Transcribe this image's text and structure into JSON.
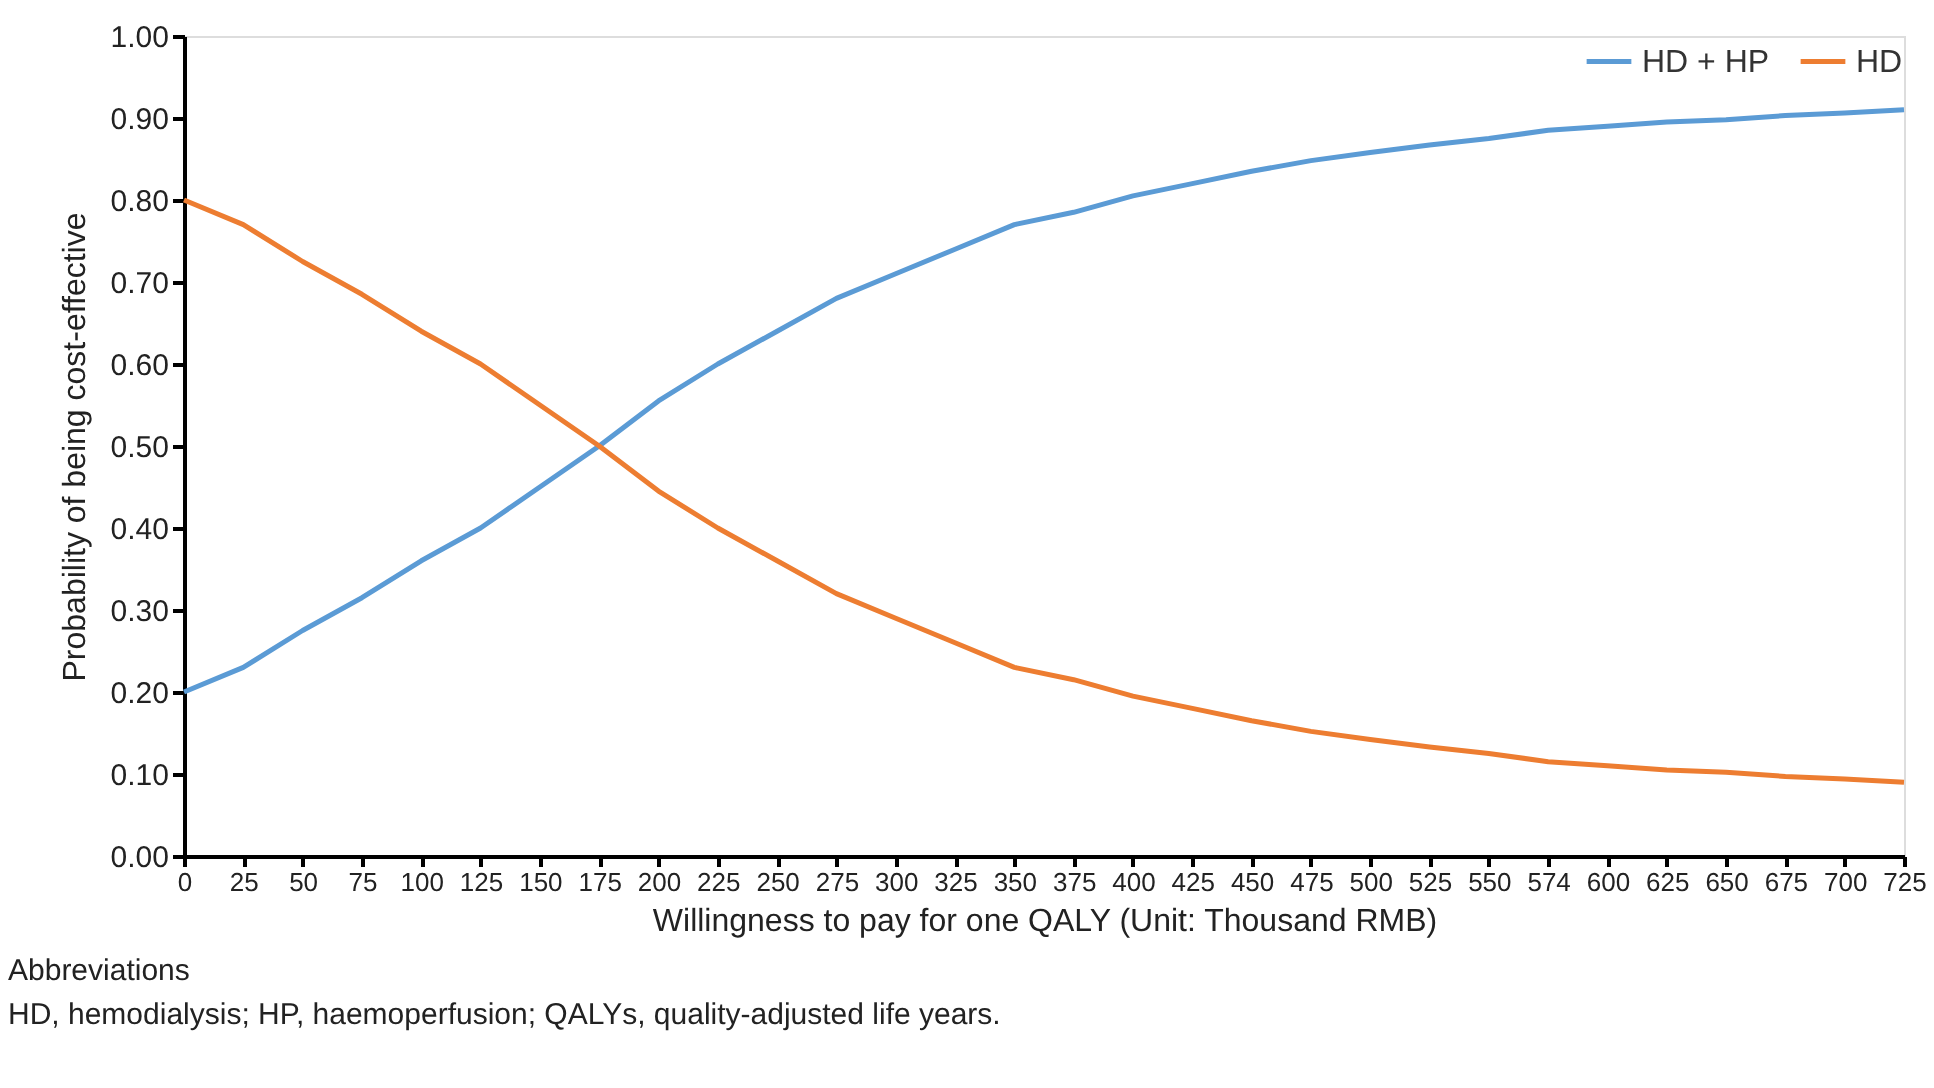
{
  "chart_data": {
    "type": "line",
    "xlabel": "Willingness to pay for one QALY (Unit: Thousand RMB)",
    "ylabel": "Probability of being cost-effective",
    "categories": [
      "0",
      "25",
      "50",
      "75",
      "100",
      "125",
      "150",
      "175",
      "200",
      "225",
      "250",
      "275",
      "300",
      "325",
      "350",
      "375",
      "400",
      "425",
      "450",
      "475",
      "500",
      "525",
      "550",
      "574",
      "600",
      "625",
      "650",
      "675",
      "700",
      "725"
    ],
    "series": [
      {
        "name": "HD + HP",
        "color": "#5b9bd5",
        "values": [
          0.2,
          0.23,
          0.275,
          0.315,
          0.36,
          0.4,
          0.45,
          0.5,
          0.555,
          0.6,
          0.64,
          0.68,
          0.71,
          0.74,
          0.77,
          0.785,
          0.805,
          0.82,
          0.835,
          0.848,
          0.858,
          0.867,
          0.875,
          0.885,
          0.89,
          0.895,
          0.898,
          0.903,
          0.906,
          0.91
        ]
      },
      {
        "name": "HD",
        "color": "#ed7d31",
        "values": [
          0.8,
          0.77,
          0.725,
          0.685,
          0.64,
          0.6,
          0.55,
          0.5,
          0.445,
          0.4,
          0.36,
          0.32,
          0.29,
          0.26,
          0.23,
          0.215,
          0.195,
          0.18,
          0.165,
          0.152,
          0.142,
          0.133,
          0.125,
          0.115,
          0.11,
          0.105,
          0.102,
          0.097,
          0.094,
          0.09
        ]
      }
    ],
    "ylim": [
      0,
      1
    ],
    "yticks": [
      {
        "value": 0,
        "label": "0.00"
      },
      {
        "value": 0.1,
        "label": "0.10"
      },
      {
        "value": 0.2,
        "label": "0.20"
      },
      {
        "value": 0.3,
        "label": "0.30"
      },
      {
        "value": 0.4,
        "label": "0.40"
      },
      {
        "value": 0.5,
        "label": "0.50"
      },
      {
        "value": 0.6,
        "label": "0.60"
      },
      {
        "value": 0.7,
        "label": "0.70"
      },
      {
        "value": 0.8,
        "label": "0.80"
      },
      {
        "value": 0.9,
        "label": "0.90"
      },
      {
        "value": 1,
        "label": "1.00"
      }
    ],
    "grid": false,
    "legend": "top right",
    "marker": "none",
    "line_style": "solid",
    "annotations": [
      "Abbreviations",
      "HD, hemodialysis; HP, haemoperfusion; QALYs, quality-adjusted life years."
    ]
  }
}
